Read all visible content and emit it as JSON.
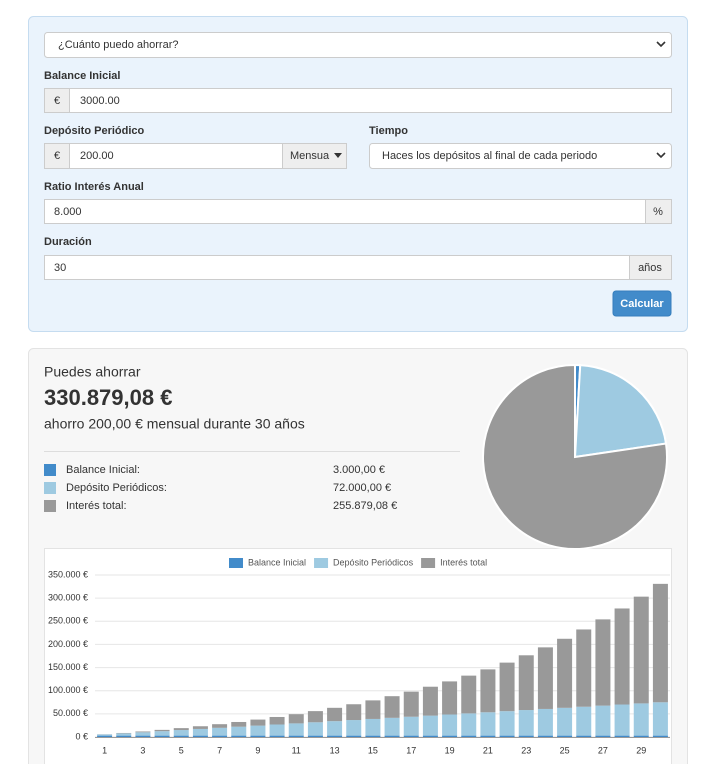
{
  "form": {
    "goal_select": "¿Cuánto puedo ahorrar?",
    "initial_label": "Balance Inicial",
    "initial_prefix": "€",
    "initial_value": "3000.00",
    "deposit_label": "Depósito Periódico",
    "deposit_prefix": "€",
    "deposit_value": "200.00",
    "deposit_period": "Mensua",
    "timing_label": "Tiempo",
    "timing_select": "Haces los depósitos al final de cada periodo",
    "rate_label": "Ratio Interés Anual",
    "rate_value": "8.000",
    "rate_suffix": "%",
    "duration_label": "Duración",
    "duration_value": "30",
    "duration_suffix": "años",
    "submit": "Calcular"
  },
  "result": {
    "heading": "Puedes ahorrar",
    "total": "330.879,08 €",
    "summary": "ahorro 200,00 € mensual durante 30 años"
  },
  "chart_data": [
    {
      "type": "pie",
      "categories": [
        "Balance Inicial:",
        "Depósito Periódicos:",
        "Interés total:"
      ],
      "values": [
        3000,
        72000,
        255879.08
      ],
      "value_labels": [
        "3.000,00 €",
        "72.000,00 €",
        "255.879,08 €"
      ],
      "colors": [
        "#428bca",
        "#9ecae1",
        "#999999"
      ]
    },
    {
      "type": "bar",
      "stacked": true,
      "legend": "top",
      "grid": true,
      "categories": [
        1,
        null,
        3,
        null,
        5,
        null,
        7,
        null,
        9,
        null,
        11,
        null,
        13,
        null,
        15,
        null,
        17,
        null,
        19,
        null,
        21,
        null,
        23,
        null,
        25,
        null,
        27,
        null,
        29,
        null
      ],
      "series": [
        {
          "name": "Balance Inicial",
          "color": "#428bca",
          "values": [
            3000,
            3000,
            3000,
            3000,
            3000,
            3000,
            3000,
            3000,
            3000,
            3000,
            3000,
            3000,
            3000,
            3000,
            3000,
            3000,
            3000,
            3000,
            3000,
            3000,
            3000,
            3000,
            3000,
            3000,
            3000,
            3000,
            3000,
            3000,
            3000,
            3000
          ]
        },
        {
          "name": "Depósito Periódicos",
          "color": "#9ecae1",
          "values": [
            2400,
            4800,
            7200,
            9600,
            12000,
            14400,
            16800,
            19200,
            21600,
            24000,
            26400,
            28800,
            31200,
            33600,
            36000,
            38400,
            40800,
            43200,
            45600,
            48000,
            50400,
            52800,
            55200,
            57600,
            60000,
            62400,
            64800,
            67200,
            69600,
            72000
          ]
        },
        {
          "name": "Interés total",
          "color": "#999999",
          "values": [
            339,
            906,
            1717,
            2798,
            4163,
            5846,
            7864,
            10253,
            13034,
            16247,
            19929,
            24112,
            28844,
            34166,
            40128,
            46786,
            54197,
            62420,
            71527,
            81584,
            92678,
            104894,
            118321,
            133064,
            149227,
            166934,
            186307,
            207489,
            230627,
            255879.08
          ]
        }
      ],
      "ylim": [
        0,
        350000
      ],
      "yticks": [
        {
          "value": 0,
          "label": "0 €"
        },
        {
          "value": 50000,
          "label": "50.000 €"
        },
        {
          "value": 100000,
          "label": "100.000 €"
        },
        {
          "value": 150000,
          "label": "150.000 €"
        },
        {
          "value": 200000,
          "label": "200.000 €"
        },
        {
          "value": 250000,
          "label": "250.000 €"
        },
        {
          "value": 300000,
          "label": "300.000 €"
        },
        {
          "value": 350000,
          "label": "350.000 €"
        }
      ]
    }
  ]
}
